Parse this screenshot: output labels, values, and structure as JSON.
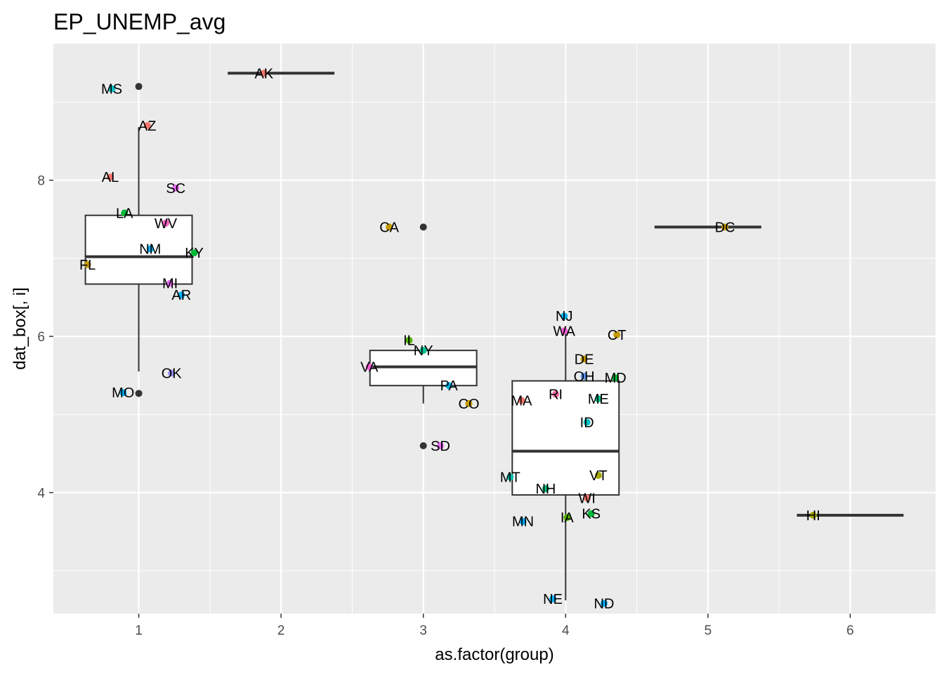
{
  "chart_data": {
    "type": "boxplot",
    "title": "EP_UNEMP_avg",
    "xlabel": "as.factor(group)",
    "ylabel": "dat_box[, i]",
    "x_ticks": [
      "1",
      "2",
      "3",
      "4",
      "5",
      "6"
    ],
    "y_ticks": [
      "4",
      "6",
      "8"
    ],
    "xlim": [
      0.4,
      6.6
    ],
    "ylim": [
      2.45,
      9.75
    ],
    "grid": true,
    "legend": "none",
    "background_color": "#ebebeb",
    "grid_color": "#ffffff",
    "boxes": [
      {
        "group": 1,
        "q1": 6.67,
        "median": 7.02,
        "q3": 7.55,
        "whisker_low": 5.55,
        "whisker_high": 8.68,
        "outliers": [
          9.2,
          5.27
        ]
      },
      {
        "group": 2,
        "q1": 9.37,
        "median": 9.37,
        "q3": 9.37,
        "whisker_low": 9.37,
        "whisker_high": 9.37,
        "outliers": []
      },
      {
        "group": 3,
        "q1": 5.37,
        "median": 5.61,
        "q3": 5.82,
        "whisker_low": 5.14,
        "whisker_high": 5.83,
        "outliers": [
          7.4,
          4.6
        ]
      },
      {
        "group": 4,
        "q1": 3.97,
        "median": 4.53,
        "q3": 5.43,
        "whisker_low": 2.62,
        "whisker_high": 6.07,
        "outliers": []
      },
      {
        "group": 5,
        "q1": 7.4,
        "median": 7.4,
        "q3": 7.4,
        "whisker_low": 7.4,
        "whisker_high": 7.4,
        "outliers": []
      },
      {
        "group": 6,
        "q1": 3.71,
        "median": 3.71,
        "q3": 3.71,
        "whisker_low": 3.71,
        "whisker_high": 3.71,
        "outliers": []
      }
    ],
    "points": [
      {
        "label": "MS",
        "x": 0.81,
        "y": 9.17,
        "color": "#00bfc4"
      },
      {
        "label": "AZ",
        "x": 1.06,
        "y": 8.7,
        "color": "#f8766d"
      },
      {
        "label": "AL",
        "x": 0.8,
        "y": 8.04,
        "color": "#f8766d"
      },
      {
        "label": "SC",
        "x": 1.26,
        "y": 7.9,
        "color": "#e76bf3"
      },
      {
        "label": "LA",
        "x": 0.9,
        "y": 7.58,
        "color": "#00ba38"
      },
      {
        "label": "WV",
        "x": 1.19,
        "y": 7.45,
        "color": "#ff61c3"
      },
      {
        "label": "NM",
        "x": 1.08,
        "y": 7.12,
        "color": "#00b0f6"
      },
      {
        "label": "KY",
        "x": 1.39,
        "y": 7.07,
        "color": "#00ba38"
      },
      {
        "label": "FL",
        "x": 0.64,
        "y": 6.92,
        "color": "#c49a00"
      },
      {
        "label": "MI",
        "x": 1.22,
        "y": 6.68,
        "color": "#e76bf3"
      },
      {
        "label": "AR",
        "x": 1.3,
        "y": 6.53,
        "color": "#00b0f6"
      },
      {
        "label": "OK",
        "x": 1.23,
        "y": 5.53,
        "color": "#9590ff"
      },
      {
        "label": "MO",
        "x": 0.89,
        "y": 5.28,
        "color": "#00b0f6"
      },
      {
        "label": "AK",
        "x": 1.88,
        "y": 9.37,
        "color": "#f8766d"
      },
      {
        "label": "CA",
        "x": 2.76,
        "y": 7.4,
        "color": "#c49a00"
      },
      {
        "label": "IL",
        "x": 2.9,
        "y": 5.95,
        "color": "#53b400"
      },
      {
        "label": "NY",
        "x": 3.0,
        "y": 5.82,
        "color": "#00c094"
      },
      {
        "label": "VA",
        "x": 2.62,
        "y": 5.61,
        "color": "#fb61d7"
      },
      {
        "label": "PA",
        "x": 3.18,
        "y": 5.37,
        "color": "#00b6eb"
      },
      {
        "label": "CO",
        "x": 3.32,
        "y": 5.14,
        "color": "#c49a00"
      },
      {
        "label": "SD",
        "x": 3.12,
        "y": 4.6,
        "color": "#e76bf3"
      },
      {
        "label": "NJ",
        "x": 3.99,
        "y": 6.26,
        "color": "#00b0f6"
      },
      {
        "label": "WA",
        "x": 3.99,
        "y": 6.07,
        "color": "#fb61d7"
      },
      {
        "label": "CT",
        "x": 4.36,
        "y": 6.02,
        "color": "#c49a00"
      },
      {
        "label": "DE",
        "x": 4.13,
        "y": 5.71,
        "color": "#c49a00"
      },
      {
        "label": "OH",
        "x": 4.13,
        "y": 5.49,
        "color": "#619cff"
      },
      {
        "label": "MD",
        "x": 4.35,
        "y": 5.47,
        "color": "#00ba38"
      },
      {
        "label": "RI",
        "x": 3.93,
        "y": 5.26,
        "color": "#ff67a4"
      },
      {
        "label": "MA",
        "x": 3.69,
        "y": 5.18,
        "color": "#f8766d"
      },
      {
        "label": "ME",
        "x": 4.23,
        "y": 5.2,
        "color": "#00c08b"
      },
      {
        "label": "ID",
        "x": 4.15,
        "y": 4.9,
        "color": "#00bfc4"
      },
      {
        "label": "MT",
        "x": 3.61,
        "y": 4.2,
        "color": "#00c0af"
      },
      {
        "label": "VT",
        "x": 4.23,
        "y": 4.22,
        "color": "#a3a500"
      },
      {
        "label": "NH",
        "x": 3.86,
        "y": 4.05,
        "color": "#00bf7d"
      },
      {
        "label": "WI",
        "x": 4.15,
        "y": 3.93,
        "color": "#f8766d"
      },
      {
        "label": "KS",
        "x": 4.18,
        "y": 3.73,
        "color": "#00ba38"
      },
      {
        "label": "IA",
        "x": 4.01,
        "y": 3.68,
        "color": "#53b400"
      },
      {
        "label": "MN",
        "x": 3.7,
        "y": 3.63,
        "color": "#00a9ff"
      },
      {
        "label": "NE",
        "x": 3.91,
        "y": 2.64,
        "color": "#00b0f6"
      },
      {
        "label": "ND",
        "x": 4.27,
        "y": 2.58,
        "color": "#00b0f6"
      },
      {
        "label": "DC",
        "x": 5.12,
        "y": 7.4,
        "color": "#c49a00"
      },
      {
        "label": "HI",
        "x": 5.74,
        "y": 3.71,
        "color": "#a3a500"
      }
    ]
  }
}
